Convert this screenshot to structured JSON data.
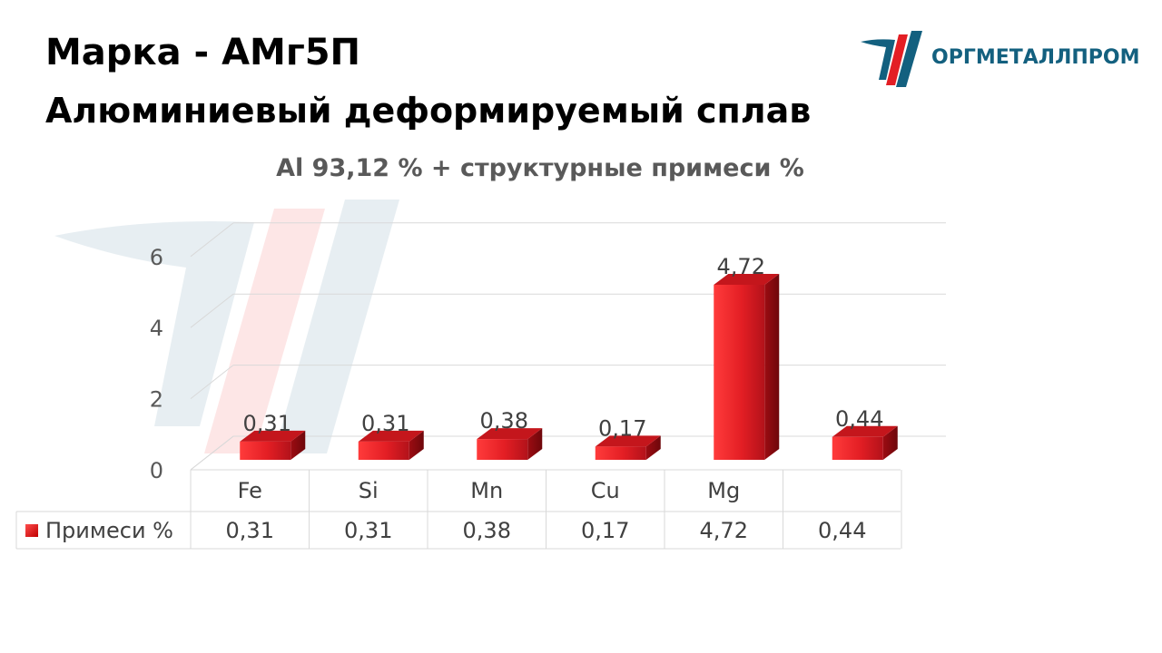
{
  "header": {
    "title_prefix": "Марка",
    "title_dash": "-",
    "title_grade": "АМг5П",
    "subtitle": "Алюминиевый деформируемый сплав"
  },
  "logo": {
    "text": "ОРГМЕТАЛЛПРОМ"
  },
  "colors": {
    "bar": "#e31e24",
    "bar_dark": "#a50f14",
    "brand": "#13607f",
    "grid": "#d9d9d9"
  },
  "chart_data": {
    "type": "bar",
    "title": "Al 93,12 % + структурные примеси %",
    "categories": [
      "Fe",
      "Si",
      "Mn",
      "Cu",
      "Mg",
      ""
    ],
    "series": [
      {
        "name": "Примеси %",
        "values": [
          0.31,
          0.31,
          0.38,
          0.17,
          4.72,
          0.44
        ],
        "labels": [
          "0,31",
          "0,31",
          "0,38",
          "0,17",
          "4,72",
          "0,44"
        ]
      }
    ],
    "yticks": [
      "0",
      "2",
      "4",
      "6"
    ],
    "ylim": [
      0,
      6
    ],
    "grid": true,
    "data_table": true,
    "style": "3d"
  }
}
